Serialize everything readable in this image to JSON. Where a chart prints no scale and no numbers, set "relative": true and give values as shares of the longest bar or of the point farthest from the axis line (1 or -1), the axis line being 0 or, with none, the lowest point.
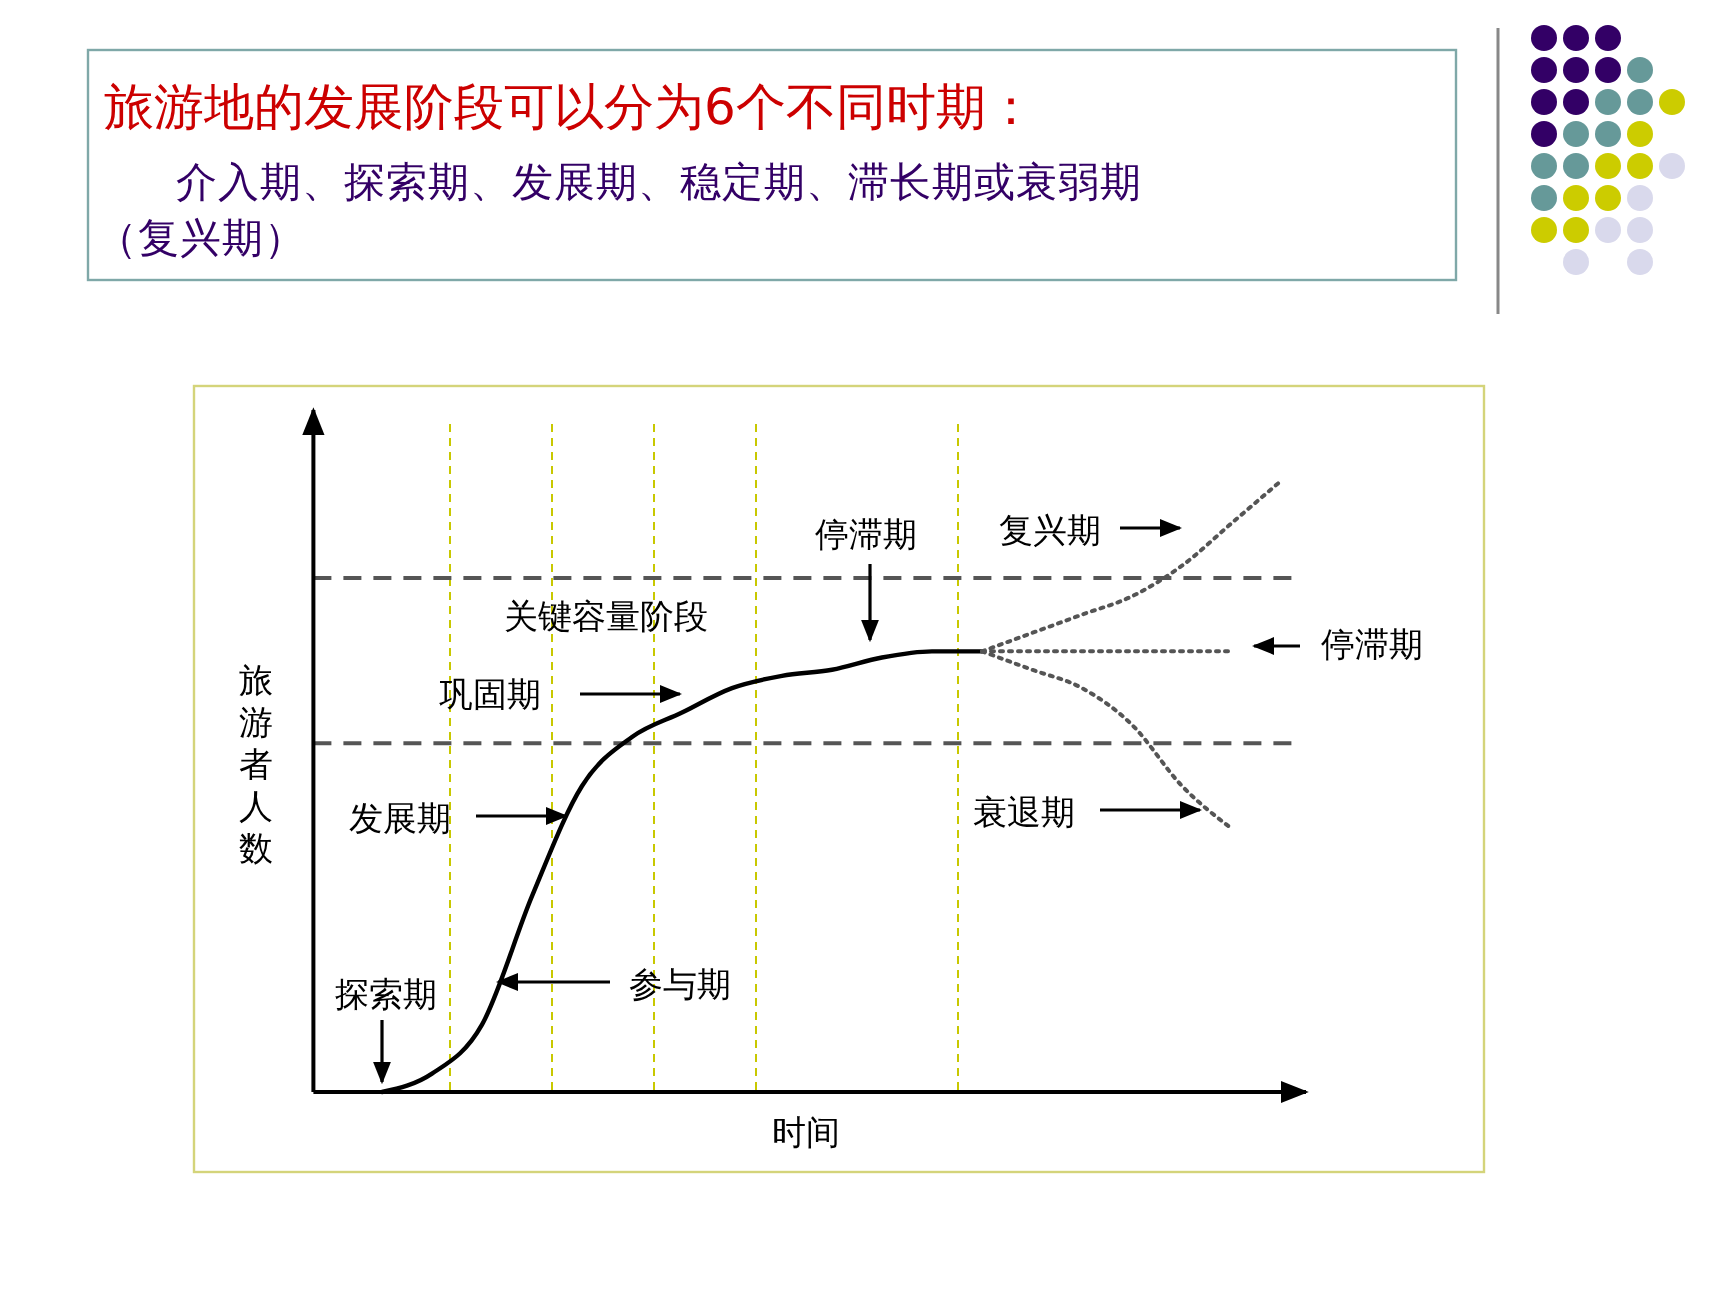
{
  "chart_data": {
    "type": "line",
    "title": "旅游地的发展阶段可以分为6个不同时期：",
    "subtitle": "介入期、探索期、发展期、稳定期、滞长期或衰弱期（复兴期）",
    "xlabel": "时间",
    "ylabel": "旅游者人数",
    "relative": true,
    "categories": [
      null,
      null,
      null,
      null,
      null,
      null,
      null,
      null,
      null,
      null,
      null,
      null,
      null,
      null,
      null,
      null,
      null,
      null,
      null
    ],
    "series": [
      {
        "color": "#000000",
        "line_style": "solid",
        "values": [
          0,
          0.03,
          0.11,
          0.32,
          0.5,
          0.58,
          0.62,
          0.66,
          0.68,
          0.69,
          0.71,
          0.72,
          0.72,
          null,
          null,
          null,
          null,
          null,
          null
        ]
      },
      {
        "color": "#555555",
        "line_style": "dotted",
        "values": [
          null,
          null,
          null,
          null,
          null,
          null,
          null,
          null,
          null,
          null,
          null,
          null,
          0.72,
          0.75,
          0.78,
          0.81,
          0.86,
          0.93,
          1.0
        ]
      },
      {
        "color": "#555555",
        "line_style": "dotted",
        "values": [
          null,
          null,
          null,
          null,
          null,
          null,
          null,
          null,
          null,
          null,
          null,
          null,
          0.72,
          0.72,
          0.72,
          0.72,
          0.72,
          0.72,
          null
        ]
      },
      {
        "color": "#555555",
        "line_style": "dotted",
        "values": [
          null,
          null,
          null,
          null,
          null,
          null,
          null,
          null,
          null,
          null,
          null,
          null,
          0.72,
          0.69,
          0.66,
          0.6,
          0.5,
          0.43,
          null
        ]
      }
    ],
    "ref_lines": [
      {
        "axis": "y",
        "value": 0.84,
        "color": "#555555",
        "line_style": "dashed"
      },
      {
        "axis": "y",
        "value": 0.57,
        "color": "#555555",
        "line_style": "dashed"
      }
    ],
    "annotations": [
      "探索期",
      "参与期",
      "发展期",
      "巩固期",
      "关键容量阶段",
      "停滞期",
      "复兴期",
      "停滞期",
      "衰退期"
    ]
  }
}
